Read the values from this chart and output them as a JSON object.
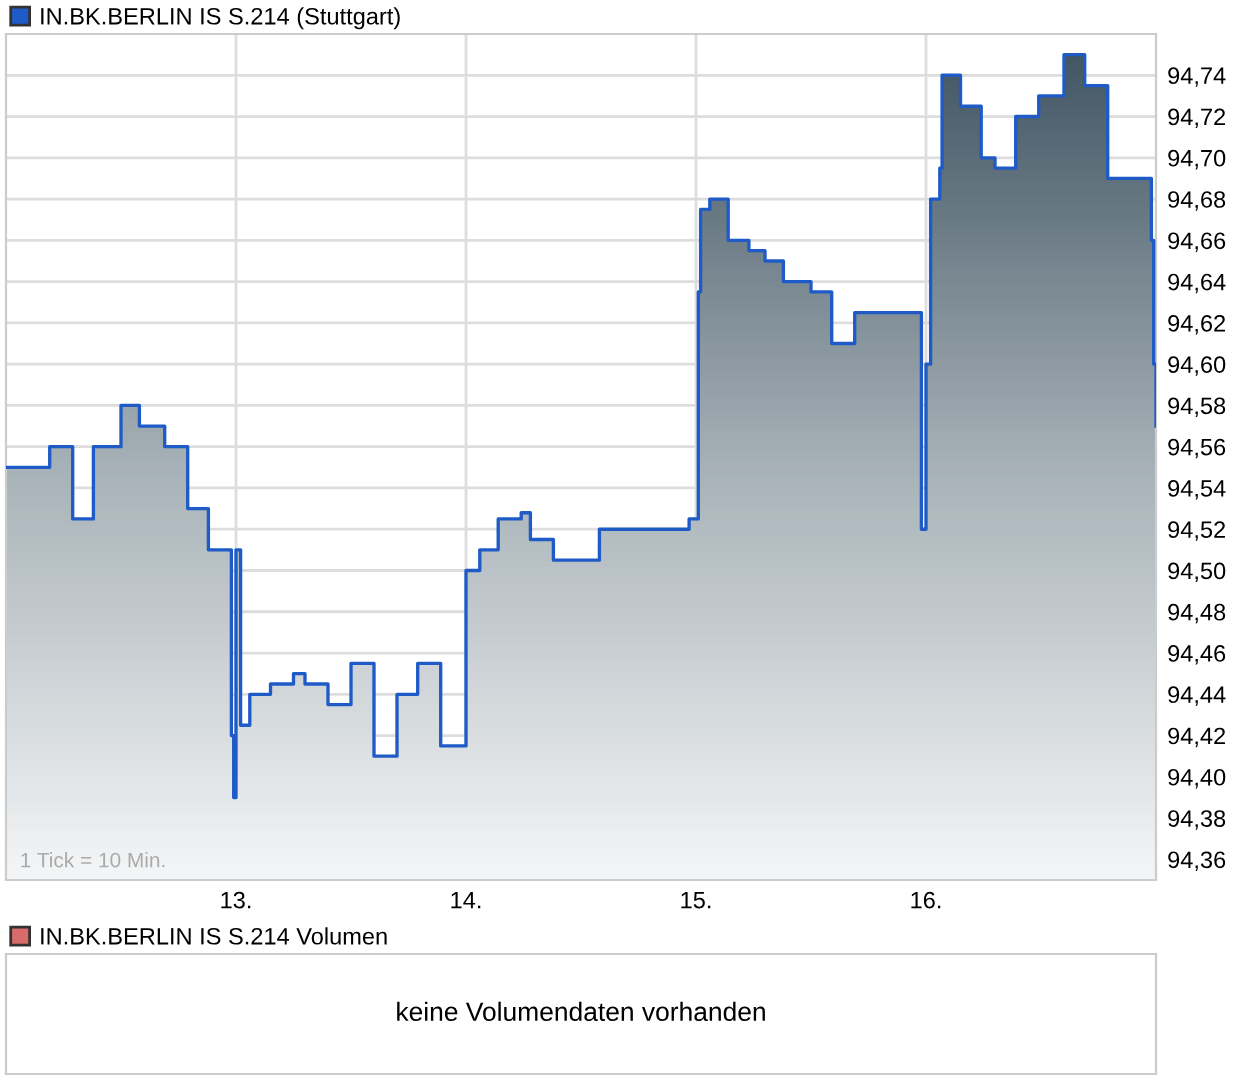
{
  "chart_data": [
    {
      "type": "step",
      "legend": "top left",
      "grid": true,
      "x": [
        12.0,
        12.19,
        12.29,
        12.38,
        12.5,
        12.58,
        12.69,
        12.79,
        12.88,
        12.98,
        12.99,
        13.0,
        13.02,
        13.06,
        13.15,
        13.25,
        13.3,
        13.4,
        13.5,
        13.6,
        13.7,
        13.79,
        13.89,
        14.0,
        14.06,
        14.14,
        14.24,
        14.28,
        14.38,
        14.58,
        14.97,
        15.01,
        15.02,
        15.06,
        15.14,
        15.23,
        15.3,
        15.38,
        15.5,
        15.59,
        15.69,
        15.98,
        16.0,
        16.02,
        16.06,
        16.07,
        16.15,
        16.24,
        16.3,
        16.39,
        16.49,
        16.6,
        16.69,
        16.79,
        16.98,
        16.99,
        17.0
      ],
      "series": [
        {
          "name": "IN.BK.BERLIN IS S.214 (Stuttgart)",
          "color": "#1f5bc6",
          "values": [
            94.55,
            94.56,
            94.525,
            94.56,
            94.58,
            94.57,
            94.56,
            94.53,
            94.51,
            94.42,
            94.39,
            94.51,
            94.425,
            94.44,
            94.445,
            94.45,
            94.445,
            94.435,
            94.455,
            94.41,
            94.44,
            94.455,
            94.415,
            94.5,
            94.51,
            94.525,
            94.528,
            94.515,
            94.505,
            94.52,
            94.525,
            94.635,
            94.675,
            94.68,
            94.66,
            94.655,
            94.65,
            94.64,
            94.635,
            94.61,
            94.625,
            94.52,
            94.6,
            94.68,
            94.695,
            94.74,
            94.725,
            94.7,
            94.695,
            94.72,
            94.73,
            94.75,
            94.735,
            94.69,
            94.66,
            94.6,
            94.57
          ]
        }
      ],
      "xlim": [
        12,
        17
      ],
      "xticks": [
        {
          "value": 13,
          "label": "13."
        },
        {
          "value": 14,
          "label": "14."
        },
        {
          "value": 15,
          "label": "15."
        },
        {
          "value": 16,
          "label": "16."
        }
      ],
      "ylim": [
        94.35,
        94.76
      ],
      "yticks": [
        {
          "value": 94.36,
          "label": "94,36"
        },
        {
          "value": 94.38,
          "label": "94,38"
        },
        {
          "value": 94.4,
          "label": "94,40"
        },
        {
          "value": 94.42,
          "label": "94,42"
        },
        {
          "value": 94.44,
          "label": "94,44"
        },
        {
          "value": 94.46,
          "label": "94,46"
        },
        {
          "value": 94.48,
          "label": "94,48"
        },
        {
          "value": 94.5,
          "label": "94,50"
        },
        {
          "value": 94.52,
          "label": "94,52"
        },
        {
          "value": 94.54,
          "label": "94,54"
        },
        {
          "value": 94.56,
          "label": "94,56"
        },
        {
          "value": 94.58,
          "label": "94,58"
        },
        {
          "value": 94.6,
          "label": "94,60"
        },
        {
          "value": 94.62,
          "label": "94,62"
        },
        {
          "value": 94.64,
          "label": "94,64"
        },
        {
          "value": 94.66,
          "label": "94,66"
        },
        {
          "value": 94.68,
          "label": "94,68"
        },
        {
          "value": 94.7,
          "label": "94,70"
        },
        {
          "value": 94.72,
          "label": "94,72"
        },
        {
          "value": 94.74,
          "label": "94,74"
        }
      ],
      "annotations": [
        "1 Tick = 10 Min."
      ]
    },
    {
      "type": "other",
      "legend": "top left",
      "series": [
        {
          "name": "IN.BK.BERLIN IS S.214 Volumen",
          "color": "#d96b6b"
        }
      ],
      "annotations": [
        "keine Volumendaten vorhanden"
      ]
    }
  ]
}
